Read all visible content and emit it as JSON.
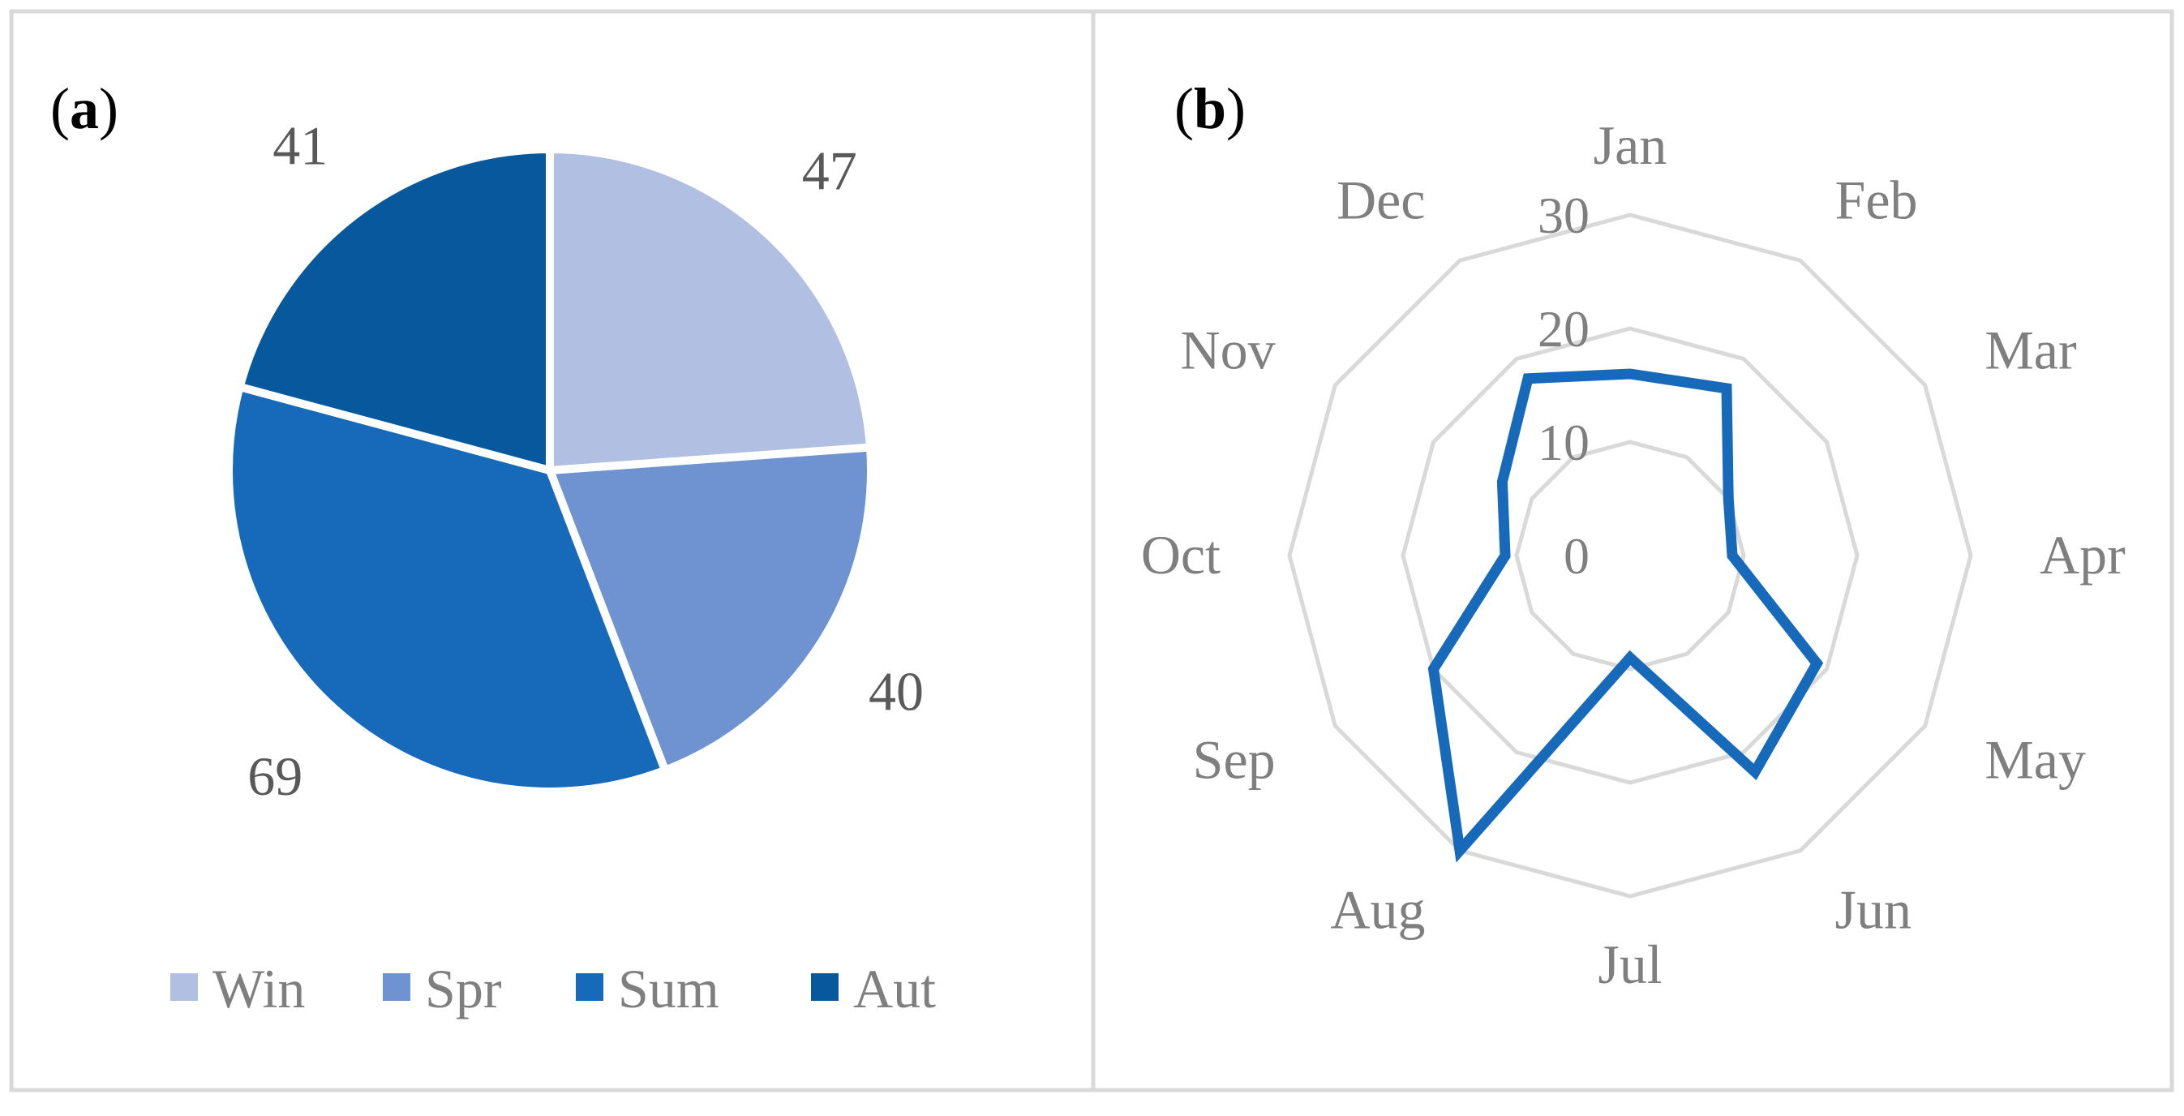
{
  "chart_data": [
    {
      "panel_label": "a",
      "type": "pie",
      "title": "",
      "categories": [
        "Win",
        "Spr",
        "Sum",
        "Aut"
      ],
      "values": [
        47,
        40,
        69,
        41
      ],
      "data_labels": [
        "47",
        "40",
        "69",
        "41"
      ],
      "colors": [
        "#b0bfe2",
        "#6f93d1",
        "#1769ba",
        "#07589d"
      ],
      "start_angle_deg": 0,
      "direction": "clockwise",
      "legend": {
        "position": "bottom",
        "entries": [
          "Win",
          "Spr",
          "Sum",
          "Aut"
        ]
      }
    },
    {
      "panel_label": "b",
      "type": "radar",
      "title": "",
      "categories": [
        "Jan",
        "Feb",
        "Mar",
        "Apr",
        "May",
        "Jun",
        "Jul",
        "Aug",
        "Sep",
        "Oct",
        "Nov",
        "Dec"
      ],
      "radial_range": [
        0,
        30
      ],
      "radial_ticks": [
        "0",
        "10",
        "20",
        "30"
      ],
      "grid": true,
      "series": [
        {
          "values": [
            16,
            17,
            10,
            9,
            19,
            22,
            9,
            30,
            20,
            11,
            13,
            18
          ],
          "color": "#1769ba"
        }
      ],
      "colors": {
        "grid": "#d9d9d9",
        "text": "#7f7f7f",
        "panel_border": "#d9d9d9"
      }
    }
  ]
}
